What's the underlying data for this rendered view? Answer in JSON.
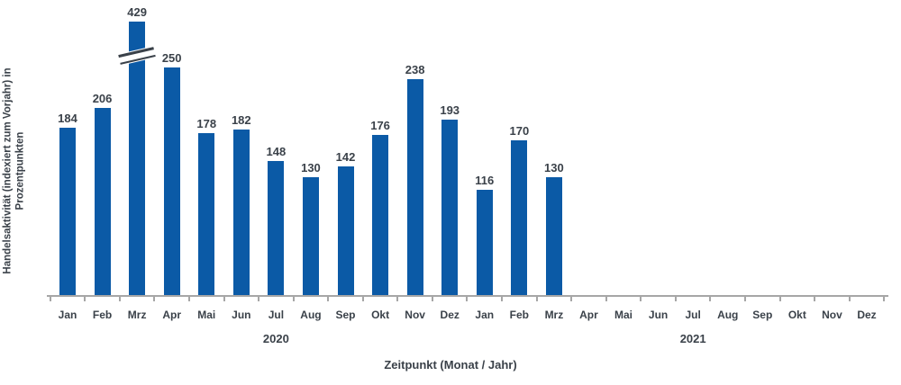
{
  "chart_data": {
    "type": "bar",
    "title": "",
    "xlabel": "Zeitpunkt (Monat / Jahr)",
    "ylabel": "Handelsaktivität (indexiert zum Vorjahr) in\nProzentpunkten",
    "categories": [
      "Jan",
      "Feb",
      "Mrz",
      "Apr",
      "Mai",
      "Jun",
      "Jul",
      "Aug",
      "Sep",
      "Okt",
      "Nov",
      "Dez",
      "Jan",
      "Feb",
      "Mrz",
      "Apr",
      "Mai",
      "Jun",
      "Jul",
      "Aug",
      "Sep",
      "Okt",
      "Nov",
      "Dez"
    ],
    "values": [
      184,
      206,
      429,
      250,
      178,
      182,
      148,
      130,
      142,
      176,
      238,
      193,
      116,
      170,
      130,
      null,
      null,
      null,
      null,
      null,
      null,
      null,
      null,
      null
    ],
    "year_groups": [
      {
        "label": "2020",
        "start": 0,
        "end": 11
      },
      {
        "label": "2021",
        "start": 12,
        "end": 23
      }
    ],
    "axis_break": {
      "index": 2,
      "value": 429
    },
    "legend": null,
    "grid": false,
    "colors": {
      "bar": "#0B5AA6",
      "text": "#3A4149",
      "axis": "#A6A6A6"
    }
  }
}
